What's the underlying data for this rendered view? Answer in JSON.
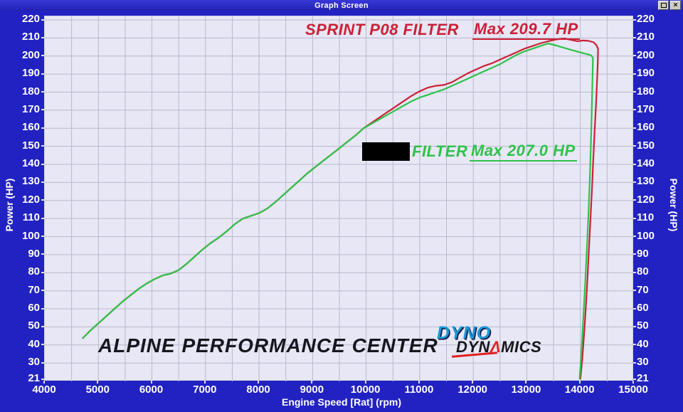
{
  "window": {
    "title": "Graph Screen",
    "close_glyph": "×"
  },
  "chart_data": {
    "type": "line",
    "title": "",
    "xlabel": "Engine Speed [Rat] (rpm)",
    "ylabel_left": "Power (HP)",
    "ylabel_right": "Power (HP)",
    "xlim": [
      4000,
      15000
    ],
    "ylim": [
      21,
      220
    ],
    "x_ticks": [
      4000,
      5000,
      6000,
      7000,
      8000,
      9000,
      10000,
      11000,
      12000,
      13000,
      14000,
      15000
    ],
    "y_ticks": [
      220,
      210,
      200,
      190,
      180,
      170,
      160,
      150,
      140,
      130,
      120,
      110,
      100,
      90,
      80,
      70,
      60,
      50,
      40,
      30,
      21
    ],
    "grid": {
      "x_step": 500,
      "y_step": 10,
      "color": "#b9b9cf",
      "on": true
    },
    "legend_position": "inside-plot",
    "series": [
      {
        "name": "SPRINT P08 FILTER",
        "max_label": "Max 209.7 HP",
        "max_value": 209.7,
        "color": "#cc2036",
        "points": [
          [
            4700,
            43.5
          ],
          [
            4850,
            48
          ],
          [
            5000,
            52
          ],
          [
            5150,
            56
          ],
          [
            5300,
            60
          ],
          [
            5450,
            64
          ],
          [
            5600,
            67.5
          ],
          [
            5750,
            71
          ],
          [
            5900,
            74
          ],
          [
            6050,
            76.5
          ],
          [
            6200,
            78.5
          ],
          [
            6350,
            79.5
          ],
          [
            6500,
            81.5
          ],
          [
            6650,
            85
          ],
          [
            6800,
            89
          ],
          [
            6950,
            93
          ],
          [
            7100,
            96.5
          ],
          [
            7250,
            99.5
          ],
          [
            7400,
            103
          ],
          [
            7550,
            107
          ],
          [
            7700,
            110
          ],
          [
            7850,
            111.5
          ],
          [
            8000,
            113
          ],
          [
            8150,
            115.5
          ],
          [
            8300,
            119
          ],
          [
            8450,
            123
          ],
          [
            8600,
            127
          ],
          [
            8750,
            131
          ],
          [
            8900,
            135
          ],
          [
            9050,
            138.5
          ],
          [
            9200,
            142
          ],
          [
            9350,
            145.5
          ],
          [
            9500,
            149
          ],
          [
            9650,
            152.5
          ],
          [
            9800,
            156
          ],
          [
            9950,
            160
          ],
          [
            10100,
            163
          ],
          [
            10250,
            166
          ],
          [
            10400,
            169
          ],
          [
            10550,
            172
          ],
          [
            10700,
            175
          ],
          [
            10850,
            178
          ],
          [
            11000,
            180.5
          ],
          [
            11150,
            182.5
          ],
          [
            11300,
            183.5
          ],
          [
            11450,
            184
          ],
          [
            11600,
            185.5
          ],
          [
            11750,
            188
          ],
          [
            11900,
            190.5
          ],
          [
            12050,
            192.5
          ],
          [
            12200,
            194.5
          ],
          [
            12350,
            196
          ],
          [
            12500,
            198
          ],
          [
            12650,
            200
          ],
          [
            12800,
            202
          ],
          [
            12950,
            204
          ],
          [
            13100,
            205.5
          ],
          [
            13250,
            207
          ],
          [
            13400,
            208.2
          ],
          [
            13550,
            209.2
          ],
          [
            13700,
            209.7
          ],
          [
            13850,
            208.8
          ],
          [
            13950,
            208.2
          ],
          [
            14050,
            208.6
          ],
          [
            14150,
            208.4
          ],
          [
            14250,
            207.6
          ],
          [
            14300,
            206
          ],
          [
            14330,
            204
          ],
          [
            14325,
            196
          ],
          [
            14310,
            185
          ],
          [
            14290,
            172
          ],
          [
            14265,
            158
          ],
          [
            14240,
            142
          ],
          [
            14215,
            125
          ],
          [
            14185,
            108
          ],
          [
            14155,
            90
          ],
          [
            14120,
            70
          ],
          [
            14080,
            50
          ],
          [
            14035,
            32
          ],
          [
            14000,
            21
          ]
        ]
      },
      {
        "name": "FILTER",
        "name_redacted_prefix": true,
        "max_label": "Max 207.0 HP",
        "max_value": 207.0,
        "color": "#2fc24a",
        "points": [
          [
            4700,
            43.5
          ],
          [
            4850,
            48
          ],
          [
            5000,
            52
          ],
          [
            5150,
            56
          ],
          [
            5300,
            60
          ],
          [
            5450,
            64
          ],
          [
            5600,
            67.5
          ],
          [
            5750,
            71
          ],
          [
            5900,
            74
          ],
          [
            6050,
            76.5
          ],
          [
            6200,
            78.5
          ],
          [
            6350,
            79.5
          ],
          [
            6500,
            81.5
          ],
          [
            6650,
            85
          ],
          [
            6800,
            89
          ],
          [
            6950,
            93
          ],
          [
            7100,
            96.5
          ],
          [
            7250,
            99.5
          ],
          [
            7400,
            103
          ],
          [
            7550,
            107
          ],
          [
            7700,
            110
          ],
          [
            7850,
            111.5
          ],
          [
            8000,
            113
          ],
          [
            8150,
            115.5
          ],
          [
            8300,
            119
          ],
          [
            8450,
            123
          ],
          [
            8600,
            127
          ],
          [
            8750,
            131
          ],
          [
            8900,
            135
          ],
          [
            9050,
            138.5
          ],
          [
            9200,
            142
          ],
          [
            9350,
            145.5
          ],
          [
            9500,
            149
          ],
          [
            9650,
            152.5
          ],
          [
            9800,
            156
          ],
          [
            9950,
            160
          ],
          [
            10100,
            162.5
          ],
          [
            10250,
            165
          ],
          [
            10400,
            167.5
          ],
          [
            10550,
            170
          ],
          [
            10700,
            172.5
          ],
          [
            10850,
            175
          ],
          [
            11000,
            177
          ],
          [
            11150,
            178.5
          ],
          [
            11300,
            180
          ],
          [
            11450,
            181.5
          ],
          [
            11600,
            183.5
          ],
          [
            11750,
            185.5
          ],
          [
            11900,
            187.5
          ],
          [
            12050,
            189.5
          ],
          [
            12200,
            191.5
          ],
          [
            12350,
            193.5
          ],
          [
            12500,
            195.5
          ],
          [
            12650,
            198
          ],
          [
            12800,
            200.5
          ],
          [
            12950,
            202.5
          ],
          [
            13100,
            204
          ],
          [
            13250,
            205.5
          ],
          [
            13400,
            207
          ],
          [
            13550,
            205.8
          ],
          [
            13700,
            204.5
          ],
          [
            13850,
            203.2
          ],
          [
            14000,
            202
          ],
          [
            14100,
            201.2
          ],
          [
            14200,
            200.4
          ],
          [
            14235,
            199
          ],
          [
            14228,
            190
          ],
          [
            14215,
            172
          ],
          [
            14200,
            155
          ],
          [
            14180,
            135
          ],
          [
            14155,
            115
          ],
          [
            14125,
            95
          ],
          [
            14090,
            74
          ],
          [
            14050,
            52
          ],
          [
            14015,
            34
          ],
          [
            13985,
            21
          ]
        ]
      }
    ],
    "annotations": {
      "watermark": "ALPINE PERFORMANCE CENTER",
      "logo_top": "DYNO",
      "logo_bottom_left": "DYN",
      "logo_bottom_accent": "Λ",
      "logo_bottom_right": "MICS"
    }
  }
}
